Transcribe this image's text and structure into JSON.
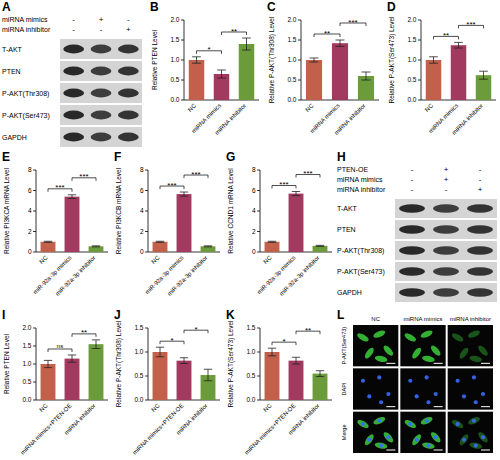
{
  "chart_data": [
    {
      "type": "bar",
      "panel": "B",
      "y_label": "Relative PTEN Level",
      "categories": [
        "NC",
        "miRNA mimics",
        "miRNA inhibitor"
      ],
      "values": [
        1.0,
        0.65,
        1.4
      ],
      "errors": [
        0.08,
        0.1,
        0.15
      ],
      "colors": [
        "#c2604b",
        "#a23a5f",
        "#6b9b3a"
      ],
      "ylim": [
        0,
        2
      ],
      "yticks": [
        {
          "value": 0,
          "label": "0.0"
        },
        {
          "value": 0.5,
          "label": "0.5"
        },
        {
          "value": 1,
          "label": "1.0"
        },
        {
          "value": 1.5,
          "label": "1.5"
        },
        {
          "value": 2,
          "label": "2.0"
        }
      ],
      "grid": false,
      "annotations": [
        {
          "text": "*",
          "between": [
            "NC",
            "miRNA mimics"
          ]
        },
        {
          "text": "**",
          "between": [
            "miRNA mimics",
            "miRNA inhibitor"
          ]
        }
      ]
    },
    {
      "type": "bar",
      "panel": "C",
      "y_label": "Relative P-AKT(Thr308) Level",
      "categories": [
        "NC",
        "miRNA mimics",
        "miRNA inhibitor"
      ],
      "values": [
        1.0,
        1.42,
        0.6
      ],
      "errors": [
        0.05,
        0.08,
        0.1
      ],
      "colors": [
        "#c2604b",
        "#a23a5f",
        "#6b9b3a"
      ],
      "ylim": [
        0,
        2
      ],
      "yticks": [
        {
          "value": 0,
          "label": "0.0"
        },
        {
          "value": 0.5,
          "label": "0.5"
        },
        {
          "value": 1,
          "label": "1.0"
        },
        {
          "value": 1.5,
          "label": "1.5"
        },
        {
          "value": 2,
          "label": "2.0"
        }
      ],
      "grid": false,
      "annotations": [
        {
          "text": "**",
          "between": [
            "NC",
            "miRNA mimics"
          ]
        },
        {
          "text": "***",
          "between": [
            "miRNA mimics",
            "miRNA inhibitor"
          ]
        }
      ]
    },
    {
      "type": "bar",
      "panel": "D",
      "y_label": "Relative P-AKT(Ser473) Level",
      "categories": [
        "NC",
        "miRNA mimics",
        "miRNA inhibitor"
      ],
      "values": [
        1.0,
        1.37,
        0.62
      ],
      "errors": [
        0.08,
        0.07,
        0.1
      ],
      "colors": [
        "#c2604b",
        "#a23a5f",
        "#6b9b3a"
      ],
      "ylim": [
        0,
        2
      ],
      "yticks": [
        {
          "value": 0,
          "label": "0.0"
        },
        {
          "value": 0.5,
          "label": "0.5"
        },
        {
          "value": 1,
          "label": "1.0"
        },
        {
          "value": 1.5,
          "label": "1.5"
        },
        {
          "value": 2,
          "label": "2.0"
        }
      ],
      "grid": false,
      "annotations": [
        {
          "text": "**",
          "between": [
            "NC",
            "miRNA mimics"
          ]
        },
        {
          "text": "***",
          "between": [
            "miRNA mimics",
            "miRNA inhibitor"
          ]
        }
      ]
    },
    {
      "type": "bar",
      "panel": "E",
      "y_label": "Relative PI3KCA mRNA Level",
      "categories": [
        "NC",
        "miR-92a-3p mimics",
        "miR-92a-3p inhibitor"
      ],
      "values": [
        1.0,
        5.4,
        0.55
      ],
      "errors": [
        0.05,
        0.18,
        0.05
      ],
      "colors": [
        "#c2604b",
        "#a23a5f",
        "#6b9b3a"
      ],
      "ylim": [
        0,
        8
      ],
      "yticks": [
        0,
        2,
        4,
        6,
        8
      ],
      "grid": false,
      "annotations": [
        {
          "text": "***",
          "between": [
            "NC",
            "miR-92a-3p mimics"
          ]
        },
        {
          "text": "***",
          "between": [
            "miR-92a-3p mimics",
            "miR-92a-3p inhibitor"
          ]
        }
      ]
    },
    {
      "type": "bar",
      "panel": "F",
      "y_label": "Relative PI3KCB mRNA Level",
      "categories": [
        "NC",
        "miR-92a-3p mimics",
        "miR-92a-3p inhibitor"
      ],
      "values": [
        1.0,
        5.65,
        0.55
      ],
      "errors": [
        0.05,
        0.2,
        0.05
      ],
      "colors": [
        "#c2604b",
        "#a23a5f",
        "#6b9b3a"
      ],
      "ylim": [
        0,
        8
      ],
      "yticks": [
        0,
        2,
        4,
        6,
        8
      ],
      "grid": false,
      "annotations": [
        {
          "text": "***",
          "between": [
            "NC",
            "miR-92a-3p mimics"
          ]
        },
        {
          "text": "***",
          "between": [
            "miR-92a-3p mimics",
            "miR-92a-3p inhibitor"
          ]
        }
      ]
    },
    {
      "type": "bar",
      "panel": "G",
      "y_label": "Relative CCND1 mRNA Level",
      "categories": [
        "NC",
        "miR-92a-3p mimics",
        "miR-92a-3p inhibitor"
      ],
      "values": [
        1.0,
        5.7,
        0.6
      ],
      "errors": [
        0.05,
        0.2,
        0.05
      ],
      "colors": [
        "#c2604b",
        "#a23a5f",
        "#6b9b3a"
      ],
      "ylim": [
        0,
        8
      ],
      "yticks": [
        0,
        2,
        4,
        6,
        8
      ],
      "grid": false,
      "annotations": [
        {
          "text": "***",
          "between": [
            "NC",
            "miR-92a-3p mimics"
          ]
        },
        {
          "text": "***",
          "between": [
            "miR-92a-3p mimics",
            "miR-92a-3p inhibitor"
          ]
        }
      ]
    },
    {
      "type": "bar",
      "panel": "I",
      "y_label": "Relative PTEN Level",
      "categories": [
        "NC",
        "miRNA mimics+PTEN-OE",
        "miRNA inhibitor"
      ],
      "values": [
        1.0,
        1.15,
        1.55
      ],
      "errors": [
        0.1,
        0.1,
        0.12
      ],
      "colors": [
        "#c2604b",
        "#a23a5f",
        "#6b9b3a"
      ],
      "ylim": [
        0,
        2
      ],
      "yticks": [
        {
          "value": 0,
          "label": "0.0"
        },
        {
          "value": 0.5,
          "label": "0.5"
        },
        {
          "value": 1,
          "label": "1.0"
        },
        {
          "value": 1.5,
          "label": "1.5"
        },
        {
          "value": 2,
          "label": "2.0"
        }
      ],
      "grid": false,
      "annotations": [
        {
          "text": "ns",
          "between": [
            "NC",
            "miRNA mimics+PTEN-OE"
          ]
        },
        {
          "text": "**",
          "between": [
            "miRNA mimics+PTEN-OE",
            "miRNA inhibitor"
          ]
        }
      ]
    },
    {
      "type": "bar",
      "panel": "J",
      "y_label": "Relative P-AKT(Thr308) Level",
      "categories": [
        "NC",
        "miRNA mimics+PTEN-OE",
        "miRNA inhibitor"
      ],
      "values": [
        1.0,
        0.82,
        0.52
      ],
      "errors": [
        0.1,
        0.06,
        0.12
      ],
      "colors": [
        "#c2604b",
        "#a23a5f",
        "#6b9b3a"
      ],
      "ylim": [
        0,
        1.5
      ],
      "yticks": [
        {
          "value": 0,
          "label": "0.0"
        },
        {
          "value": 0.5,
          "label": "0.5"
        },
        {
          "value": 1,
          "label": "1.0"
        },
        {
          "value": 1.5,
          "label": "1.5"
        }
      ],
      "grid": false,
      "annotations": [
        {
          "text": "*",
          "between": [
            "NC",
            "miRNA mimics+PTEN-OE"
          ]
        },
        {
          "text": "*",
          "between": [
            "miRNA mimics+PTEN-OE",
            "miRNA inhibitor"
          ]
        }
      ]
    },
    {
      "type": "bar",
      "panel": "K",
      "y_label": "Relative P-AKT(Ser473) Level",
      "categories": [
        "NC",
        "miRNA mimics+PTEN-OE",
        "miRNA inhibitor"
      ],
      "values": [
        1.0,
        0.82,
        0.55
      ],
      "errors": [
        0.08,
        0.07,
        0.06
      ],
      "colors": [
        "#c2604b",
        "#a23a5f",
        "#6b9b3a"
      ],
      "ylim": [
        0,
        1.5
      ],
      "yticks": [
        {
          "value": 0,
          "label": "0.0"
        },
        {
          "value": 0.5,
          "label": "0.5"
        },
        {
          "value": 1,
          "label": "1.0"
        },
        {
          "value": 1.5,
          "label": "1.5"
        }
      ],
      "grid": false,
      "annotations": [
        {
          "text": "*",
          "between": [
            "NC",
            "miRNA mimics+PTEN-OE"
          ]
        },
        {
          "text": "**",
          "between": [
            "miRNA mimics+PTEN-OE",
            "miRNA inhibitor"
          ]
        }
      ]
    }
  ],
  "blots": [
    {
      "panel": "A",
      "conditions": [
        {
          "label": "miRNA mimics",
          "lanes": [
            "-",
            "+",
            "-"
          ]
        },
        {
          "label": "miRNA inhibitor",
          "lanes": [
            "-",
            "-",
            "+"
          ]
        }
      ],
      "rows": [
        "T-AKT",
        "PTEN",
        "P-AKT(Thr308)",
        "P-AKT(Ser473)",
        "GAPDH"
      ]
    },
    {
      "panel": "H",
      "conditions": [
        {
          "label": "PTEN-OE",
          "lanes": [
            "-",
            "+",
            "-"
          ]
        },
        {
          "label": "miRNA mimics",
          "lanes": [
            "-",
            "+",
            "-"
          ]
        },
        {
          "label": "miRNA inhibitor",
          "lanes": [
            "-",
            "-",
            "+"
          ]
        }
      ],
      "rows": [
        "T-AKT",
        "PTEN",
        "P-AKT(Thr308)",
        "P-AKT(Ser473)",
        "GAPDH"
      ]
    }
  ],
  "fluorescence": {
    "panel": "L",
    "columns": [
      "NC",
      "miRNA mimics",
      "miRNA inhibitor"
    ],
    "rows": [
      "P-AKT(Ser473)",
      "DAPI",
      "Merge"
    ]
  }
}
